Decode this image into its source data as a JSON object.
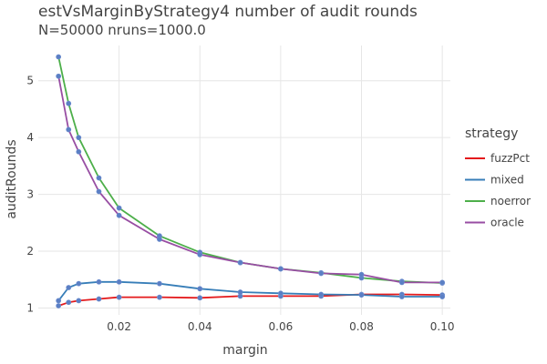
{
  "chart_data": {
    "type": "line",
    "title": "estVsMarginByStrategy4 number of audit rounds",
    "subtitle": "N=50000 nruns=1000.0",
    "xlabel": "margin",
    "ylabel": "auditRounds",
    "xlim": [
      0.0,
      0.102
    ],
    "ylim": [
      0.88,
      5.62
    ],
    "x_ticks": [
      0.02,
      0.04,
      0.06,
      0.08,
      0.1
    ],
    "x_tick_labels": [
      "0.02",
      "0.04",
      "0.06",
      "0.08",
      "0.10"
    ],
    "y_ticks": [
      1,
      2,
      3,
      4,
      5
    ],
    "y_tick_labels": [
      "1",
      "2",
      "3",
      "4",
      "5"
    ],
    "grid": true,
    "legend_title": "strategy",
    "legend_position": "right",
    "marker_color": "#5b7fc4",
    "x": [
      0.005,
      0.0075,
      0.01,
      0.015,
      0.02,
      0.03,
      0.04,
      0.05,
      0.06,
      0.07,
      0.08,
      0.09,
      0.1
    ],
    "series": [
      {
        "name": "fuzzPct",
        "color": "#e41a1c",
        "values": [
          1.04,
          1.1,
          1.13,
          1.16,
          1.19,
          1.19,
          1.18,
          1.21,
          1.21,
          1.21,
          1.24,
          1.24,
          1.23
        ]
      },
      {
        "name": "mixed",
        "color": "#377eb8",
        "values": [
          1.13,
          1.36,
          1.43,
          1.46,
          1.46,
          1.43,
          1.34,
          1.28,
          1.26,
          1.24,
          1.23,
          1.2,
          1.2
        ]
      },
      {
        "name": "noerror",
        "color": "#4daf4a",
        "values": [
          5.42,
          4.6,
          4.0,
          3.29,
          2.76,
          2.27,
          1.98,
          1.8,
          1.69,
          1.62,
          1.53,
          1.47,
          1.44
        ]
      },
      {
        "name": "oracle",
        "color": "#984ea3",
        "values": [
          5.08,
          4.14,
          3.75,
          3.05,
          2.63,
          2.21,
          1.94,
          1.8,
          1.69,
          1.61,
          1.59,
          1.45,
          1.45
        ]
      }
    ]
  }
}
